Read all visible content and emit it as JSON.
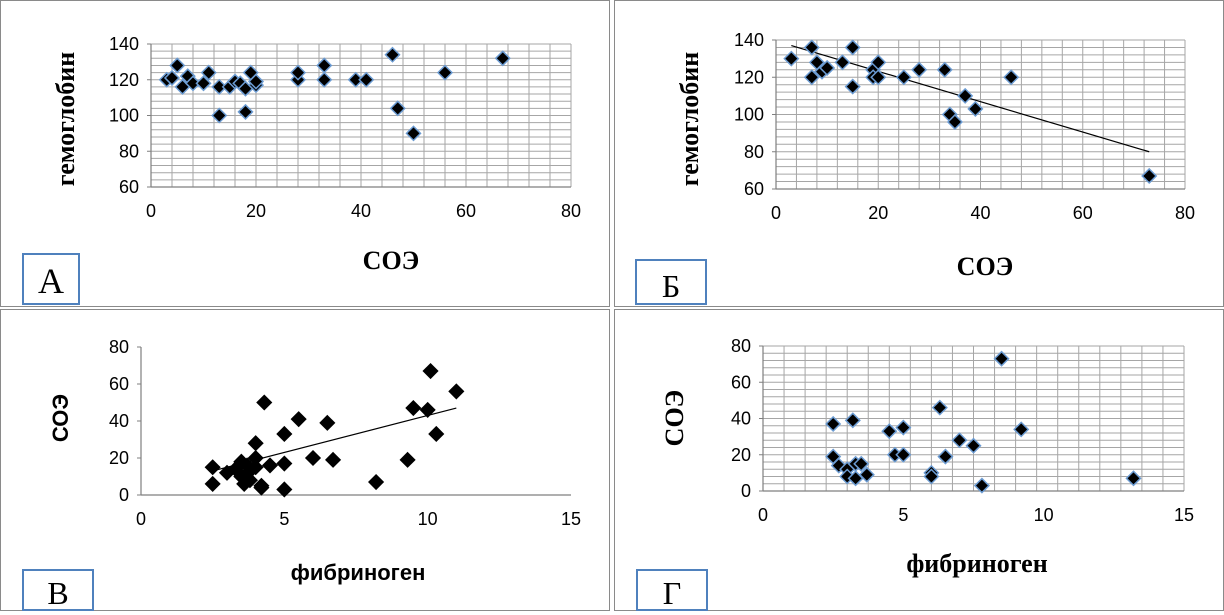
{
  "chart_data": [
    {
      "id": "A",
      "type": "scatter",
      "panel_label": "А",
      "xlabel": "СОЭ",
      "ylabel": "гемоглобин",
      "xlim": [
        0,
        80
      ],
      "ylim": [
        60,
        140
      ],
      "xticks": [
        0,
        20,
        40,
        60,
        80
      ],
      "yticks": [
        60,
        80,
        100,
        120,
        140
      ],
      "grid": true,
      "trendline": null,
      "points": [
        [
          3,
          120
        ],
        [
          4,
          121
        ],
        [
          5,
          128
        ],
        [
          6,
          116
        ],
        [
          7,
          122
        ],
        [
          8,
          118
        ],
        [
          10,
          118
        ],
        [
          11,
          124
        ],
        [
          13,
          100
        ],
        [
          13,
          116
        ],
        [
          15,
          116
        ],
        [
          16,
          119
        ],
        [
          17,
          118
        ],
        [
          18,
          102
        ],
        [
          18,
          115
        ],
        [
          19,
          124
        ],
        [
          20,
          117
        ],
        [
          20,
          119
        ],
        [
          28,
          120
        ],
        [
          28,
          124
        ],
        [
          33,
          120
        ],
        [
          33,
          128
        ],
        [
          39,
          120
        ],
        [
          41,
          120
        ],
        [
          46,
          134
        ],
        [
          47,
          104
        ],
        [
          50,
          90
        ],
        [
          56,
          124
        ],
        [
          67,
          132
        ]
      ]
    },
    {
      "id": "B",
      "type": "scatter",
      "panel_label": "Б",
      "xlabel": "СОЭ",
      "ylabel": "гемоглобин",
      "xlim": [
        0,
        80
      ],
      "ylim": [
        60,
        140
      ],
      "xticks": [
        0,
        20,
        40,
        60,
        80
      ],
      "yticks": [
        60,
        80,
        100,
        120,
        140
      ],
      "grid": true,
      "trendline": [
        [
          3,
          137
        ],
        [
          73,
          80
        ]
      ],
      "points": [
        [
          3,
          130
        ],
        [
          7,
          120
        ],
        [
          7,
          136
        ],
        [
          8,
          128
        ],
        [
          9,
          123
        ],
        [
          10,
          125
        ],
        [
          13,
          128
        ],
        [
          15,
          136
        ],
        [
          15,
          115
        ],
        [
          19,
          124
        ],
        [
          19,
          120
        ],
        [
          20,
          128
        ],
        [
          20,
          120
        ],
        [
          25,
          120
        ],
        [
          28,
          124
        ],
        [
          33,
          124
        ],
        [
          34,
          100
        ],
        [
          35,
          96
        ],
        [
          37,
          110
        ],
        [
          39,
          103
        ],
        [
          46,
          120
        ],
        [
          73,
          67
        ]
      ]
    },
    {
      "id": "V",
      "type": "scatter",
      "panel_label": "В",
      "xlabel": "фибриноген",
      "ylabel": "СОЭ",
      "xlim": [
        0,
        15
      ],
      "ylim": [
        0,
        80
      ],
      "xticks": [
        0,
        5,
        10,
        15
      ],
      "yticks": [
        0,
        20,
        40,
        60,
        80
      ],
      "grid": false,
      "trendline": [
        [
          2.5,
          13
        ],
        [
          11,
          47
        ]
      ],
      "points": [
        [
          2.5,
          15
        ],
        [
          2.5,
          6
        ],
        [
          3,
          12
        ],
        [
          3.3,
          14
        ],
        [
          3.5,
          18
        ],
        [
          3.5,
          10
        ],
        [
          3.6,
          6
        ],
        [
          3.7,
          16
        ],
        [
          3.8,
          13
        ],
        [
          3.8,
          8
        ],
        [
          4,
          28
        ],
        [
          4,
          20
        ],
        [
          4,
          15
        ],
        [
          4.2,
          5
        ],
        [
          4.2,
          4
        ],
        [
          4.3,
          50
        ],
        [
          4.5,
          16
        ],
        [
          5,
          33
        ],
        [
          5,
          17
        ],
        [
          5,
          3
        ],
        [
          5.5,
          41
        ],
        [
          6,
          20
        ],
        [
          6.5,
          39
        ],
        [
          6.7,
          19
        ],
        [
          8.2,
          7
        ],
        [
          9.3,
          19
        ],
        [
          9.5,
          47
        ],
        [
          10,
          46
        ],
        [
          10.1,
          67
        ],
        [
          10.3,
          33
        ],
        [
          11,
          56
        ]
      ]
    },
    {
      "id": "G",
      "type": "scatter",
      "panel_label": "Г",
      "xlabel": "фибриноген",
      "ylabel": "СОЭ",
      "xlim": [
        0,
        15
      ],
      "ylim": [
        0,
        80
      ],
      "xticks": [
        0,
        5,
        10,
        15
      ],
      "yticks": [
        0,
        20,
        40,
        60,
        80
      ],
      "grid": true,
      "trendline": null,
      "points": [
        [
          2.5,
          37
        ],
        [
          2.5,
          19
        ],
        [
          2.7,
          14
        ],
        [
          3,
          12
        ],
        [
          3,
          8
        ],
        [
          3.2,
          39
        ],
        [
          3.3,
          15
        ],
        [
          3.3,
          7
        ],
        [
          3.5,
          15
        ],
        [
          3.7,
          9
        ],
        [
          4.5,
          33
        ],
        [
          4.7,
          20
        ],
        [
          5,
          35
        ],
        [
          5,
          20
        ],
        [
          6,
          10
        ],
        [
          6,
          8
        ],
        [
          6.3,
          46
        ],
        [
          6.5,
          19
        ],
        [
          7,
          28
        ],
        [
          7.5,
          25
        ],
        [
          7.8,
          3
        ],
        [
          8.5,
          73
        ],
        [
          9.2,
          34
        ],
        [
          13.2,
          7
        ]
      ]
    }
  ]
}
